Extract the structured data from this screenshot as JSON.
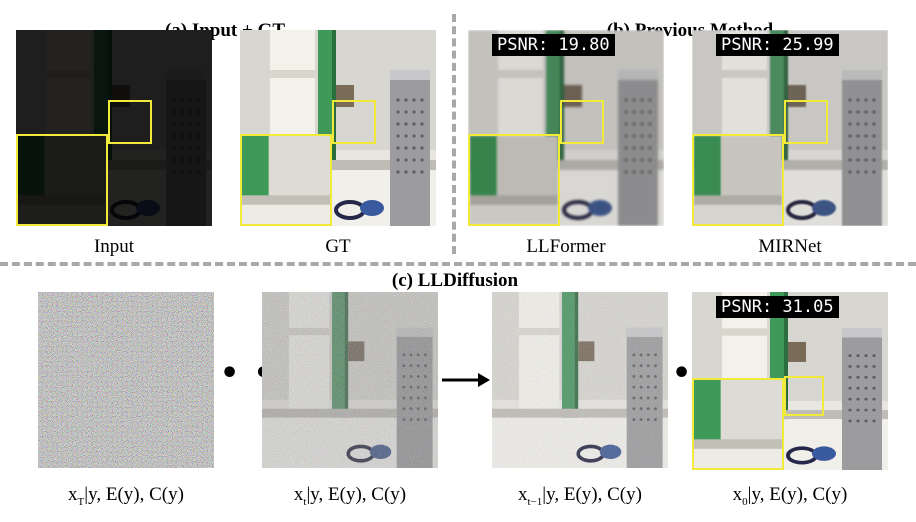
{
  "section_a": {
    "title": "(a) Input + GT"
  },
  "section_b": {
    "title": "(b) Previous Method"
  },
  "section_c": {
    "title": "(c) LLDiffusion"
  },
  "panels": {
    "input": {
      "caption": "Input"
    },
    "gt": {
      "caption": "GT"
    },
    "llformer": {
      "caption": "LLFormer",
      "psnr": "PSNR: 19.80"
    },
    "mirnet": {
      "caption": "MIRNet",
      "psnr": "PSNR: 25.99"
    },
    "x0": {
      "psnr": "PSNR: 31.05"
    }
  },
  "diffusion_captions": {
    "xT": {
      "var": "x",
      "sub": "T",
      "rest": "|y, E(y), C(y)"
    },
    "xt": {
      "var": "x",
      "sub": "t",
      "rest": "|y, E(y), C(y)"
    },
    "xt1": {
      "var": "x",
      "sub": "t−1",
      "rest": "|y, E(y), C(y)"
    },
    "x0": {
      "var": "x",
      "sub": "0",
      "rest": "|y, E(y), C(y)"
    }
  },
  "ellipsis": "• • •",
  "colors": {
    "highlight": "#f2ea3a",
    "divider": "#a8a8a8"
  }
}
